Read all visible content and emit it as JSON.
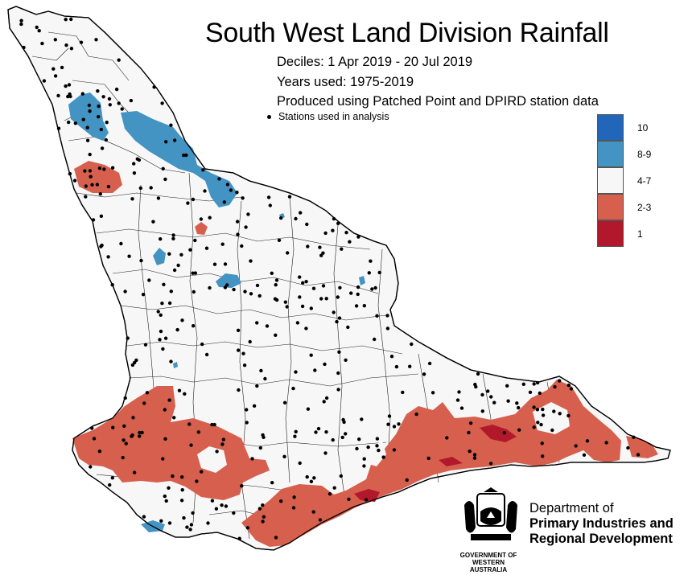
{
  "title": "South West Land Division Rainfall",
  "subtitle_lines": [
    "Deciles:  1 Apr 2019 - 20 Jul 2019",
    "Years used: 1975-2019",
    "Produced using Patched Point and DPIRD station data"
  ],
  "stations_note": "Stations used in analysis",
  "legend": [
    {
      "label": "10",
      "color": "#2166b8"
    },
    {
      "label": "8-9",
      "color": "#4393c3"
    },
    {
      "label": "4-7",
      "color": "#f7f7f7"
    },
    {
      "label": "2-3",
      "color": "#d6604d"
    },
    {
      "label": "1",
      "color": "#b2182b"
    }
  ],
  "organisation": {
    "line1": "Department of",
    "line2": "Primary Industries and",
    "line3": "Regional Development"
  },
  "government": {
    "line1": "GOVERNMENT OF",
    "line2": "WESTERN AUSTRALIA"
  },
  "colors": {
    "land": "#f7f7f7",
    "above": "#4393c3",
    "below": "#d6604d",
    "lowest": "#b2182b"
  }
}
